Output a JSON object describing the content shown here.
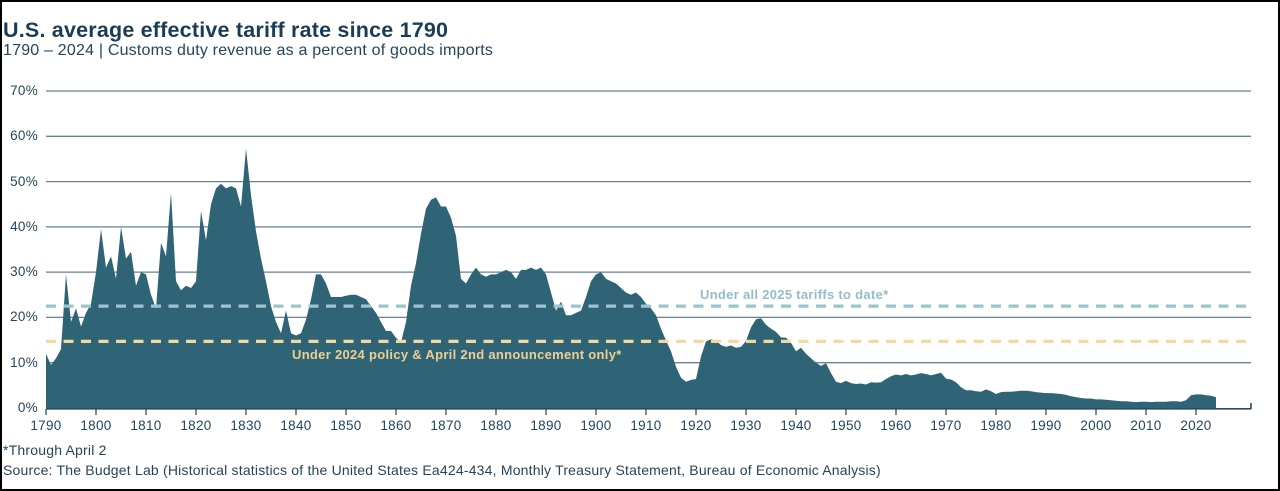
{
  "header": {
    "title": "U.S. average effective tariff rate since 1790",
    "subtitle": "1790 – 2024 | Customs duty revenue as a percent of goods imports"
  },
  "footnotes": {
    "line1": "*Through April 2",
    "line2": "Source: The Budget Lab (Historical statistics of the United States Ea424-434, Monthly Treasury Statement, Bureau of Economic Analysis)"
  },
  "chart_data": {
    "type": "area",
    "title": "U.S. average effective tariff rate since 1790",
    "subtitle": "1790 – 2024 | Customs duty revenue as a percent of goods imports",
    "xlabel": "",
    "ylabel": "Customs duty revenue as a percent of goods imports",
    "x_start_year": 1790,
    "x_end_year": 2024,
    "ylim": [
      0,
      70
    ],
    "ytick_labels": [
      "0%",
      "10%",
      "20%",
      "30%",
      "40%",
      "50%",
      "60%",
      "70%"
    ],
    "xticks": [
      1790,
      1800,
      1810,
      1820,
      1830,
      1840,
      1850,
      1860,
      1870,
      1880,
      1890,
      1900,
      1910,
      1920,
      1930,
      1940,
      1950,
      1960,
      1970,
      1980,
      1990,
      2000,
      2010,
      2020
    ],
    "grid": "horizontal",
    "legend_position": "none",
    "area_color": "#2f6476",
    "values": [
      12,
      9.5,
      11,
      13,
      29.5,
      19,
      22,
      18,
      21,
      23,
      30,
      39.5,
      31,
      33.5,
      28.5,
      40,
      33,
      34.5,
      27,
      30,
      29.5,
      25,
      22,
      36.5,
      33.5,
      47.5,
      28,
      26,
      27,
      26.5,
      28,
      43.5,
      37,
      45,
      48.5,
      49.5,
      48.5,
      49,
      48.5,
      44.5,
      57.3,
      47,
      39,
      33,
      28,
      22.5,
      19,
      16.5,
      21.5,
      16.5,
      16,
      16.5,
      19.5,
      24,
      29.5,
      29.5,
      27.5,
      24.5,
      24.5,
      24.5,
      24.8,
      25,
      25,
      24.5,
      24,
      22.5,
      21,
      19,
      17,
      17,
      15.5,
      14.5,
      19,
      27,
      32,
      38.5,
      44,
      46,
      46.5,
      44.5,
      44.5,
      42,
      38,
      28.5,
      27.5,
      29.5,
      31,
      29.5,
      29,
      29.5,
      29.5,
      30,
      30.5,
      30,
      28.5,
      30.5,
      30.5,
      31,
      30.5,
      31,
      29.5,
      25.5,
      21.5,
      23.5,
      20.5,
      20.5,
      21,
      21.5,
      24.5,
      28,
      29.5,
      30,
      28.5,
      28,
      27.5,
      26.5,
      25.5,
      25,
      25.5,
      24.5,
      23,
      22,
      20.5,
      17.5,
      14.9,
      12.5,
      9.1,
      6.7,
      5.8,
      6.2,
      6.4,
      11.4,
      14.7,
      15.2,
      14.9,
      13.9,
      13.5,
      13.8,
      13.3,
      13.5,
      14.8,
      17.8,
      19.6,
      19.8,
      18.4,
      17.5,
      16.8,
      15.6,
      15.5,
      14.4,
      12.5,
      13.3,
      12,
      11,
      10,
      9.3,
      9.9,
      7.7,
      5.8,
      5.5,
      6,
      5.5,
      5.3,
      5.4,
      5.2,
      5.7,
      5.6,
      5.7,
      6.4,
      7,
      7.4,
      7.2,
      7.5,
      7.2,
      7.4,
      7.7,
      7.5,
      7.2,
      7.5,
      7.8,
      6.5,
      6.3,
      5.7,
      4.6,
      3.9,
      3.9,
      3.7,
      3.6,
      4.1,
      3.7,
      3.1,
      3.5,
      3.6,
      3.6,
      3.7,
      3.8,
      3.8,
      3.7,
      3.5,
      3.4,
      3.3,
      3.3,
      3.2,
      3.1,
      2.9,
      2.6,
      2.4,
      2.2,
      2.1,
      2.1,
      1.9,
      1.9,
      1.8,
      1.7,
      1.6,
      1.5,
      1.5,
      1.4,
      1.3,
      1.4,
      1.4,
      1.3,
      1.4,
      1.4,
      1.4,
      1.5,
      1.5,
      1.4,
      1.7,
      2.8,
      3,
      3,
      2.8,
      2.7,
      2.4
    ],
    "reference_lines": [
      {
        "label": "Under all 2025 tariffs to date*",
        "value": 22.5,
        "line_color": "#9cc4cf",
        "text_color": "#93bdca"
      },
      {
        "label": "Under 2024 policy & April 2nd announcement only*",
        "value": 14.7,
        "line_color": "#f3d89f",
        "text_color": "#ecd092"
      }
    ],
    "colors": {
      "area": "#2f6476",
      "gridline": "#4d6b80",
      "axis": "#2c4a60",
      "text": "#24455d"
    }
  }
}
